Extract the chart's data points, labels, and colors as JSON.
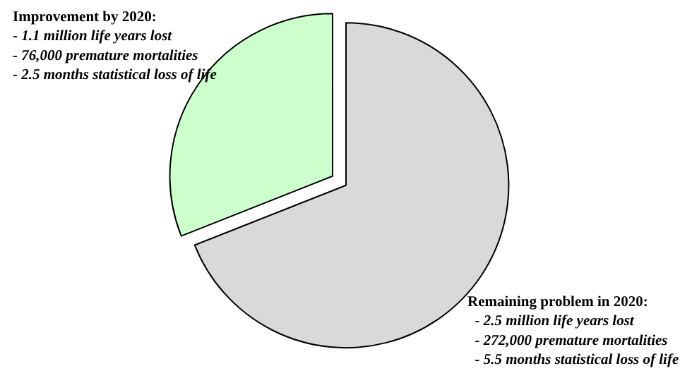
{
  "chart_data": {
    "type": "pie",
    "categories": [
      null,
      null
    ],
    "values": [
      31,
      69
    ],
    "colors": [
      "#ccffcc",
      "#d9d9d9"
    ],
    "annotations": [
      "Improvement by 2020:\n- 1.1 million life years lost\n- 76,000 premature mortalities\n- 2.5 months statistical loss of life",
      "Remaining problem in 2020:\n- 2.5 million life years lost\n- 272,000 premature mortalities\n- 5.5 months statistical loss of life"
    ],
    "legend": false
  }
}
